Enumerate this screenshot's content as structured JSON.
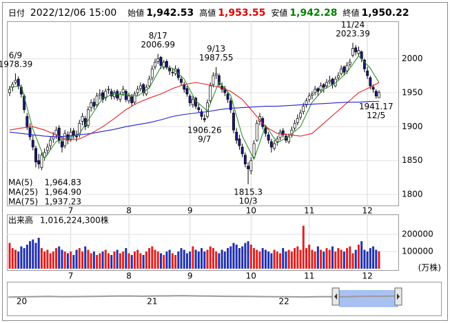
{
  "chart_data": {
    "type": "candlestick",
    "header": {
      "date_label": "日付",
      "date": "2022/12/06 15:00",
      "items": [
        {
          "name": "始値",
          "value": "1,942.53",
          "color": "#000000"
        },
        {
          "name": "高値",
          "value": "1,953.55",
          "color": "#e00000"
        },
        {
          "name": "安値",
          "value": "1,942.28",
          "color": "#008000"
        },
        {
          "name": "終値",
          "value": "1,950.22",
          "color": "#000000"
        }
      ]
    },
    "up_color": "#ffffff",
    "down_color": "#1a1a80",
    "outline_color": "#000000",
    "ylim": [
      1784,
      2055
    ],
    "yticks": [
      1800,
      1850,
      1900,
      1950,
      2000
    ],
    "grid": true,
    "xticks": [
      {
        "value": 21,
        "label": "7"
      },
      {
        "value": 41,
        "label": "8"
      },
      {
        "value": 62,
        "label": "9"
      },
      {
        "value": 83,
        "label": "10"
      },
      {
        "value": 103,
        "label": "11"
      },
      {
        "value": 123,
        "label": "12"
      }
    ],
    "candles": [
      [
        1950,
        1960,
        1945,
        1955
      ],
      [
        1958,
        1966,
        1952,
        1962
      ],
      [
        1965,
        1978.39,
        1962,
        1968
      ],
      [
        1970,
        1974,
        1955,
        1960
      ],
      [
        1958,
        1962,
        1943,
        1948
      ],
      [
        1945,
        1948,
        1920,
        1925
      ],
      [
        1915,
        1920,
        1895,
        1900
      ],
      [
        1898,
        1905,
        1880,
        1885
      ],
      [
        1880,
        1888,
        1865,
        1870
      ],
      [
        1868,
        1872,
        1840,
        1848
      ],
      [
        1850,
        1860,
        1838,
        1845
      ],
      [
        1840,
        1862,
        1836,
        1858
      ],
      [
        1855,
        1868,
        1850,
        1862
      ],
      [
        1865,
        1875,
        1858,
        1870
      ],
      [
        1872,
        1885,
        1866,
        1880
      ],
      [
        1882,
        1892,
        1876,
        1885
      ],
      [
        1888,
        1900,
        1882,
        1895
      ],
      [
        1898,
        1902,
        1875,
        1880
      ],
      [
        1878,
        1885,
        1862,
        1870
      ],
      [
        1872,
        1895,
        1868,
        1890
      ],
      [
        1888,
        1893,
        1874,
        1880
      ],
      [
        1882,
        1898,
        1878,
        1892
      ],
      [
        1894,
        1898,
        1882,
        1888
      ],
      [
        1886,
        1894,
        1878,
        1885
      ],
      [
        1888,
        1910,
        1884,
        1905
      ],
      [
        1908,
        1920,
        1902,
        1915
      ],
      [
        1912,
        1916,
        1895,
        1900
      ],
      [
        1902,
        1930,
        1898,
        1925
      ],
      [
        1928,
        1940,
        1922,
        1935
      ],
      [
        1936,
        1942,
        1925,
        1930
      ],
      [
        1932,
        1950,
        1928,
        1945
      ],
      [
        1946,
        1955,
        1940,
        1948
      ],
      [
        1950,
        1954,
        1935,
        1940
      ],
      [
        1942,
        1956,
        1938,
        1952
      ],
      [
        1954,
        1960,
        1948,
        1955
      ],
      [
        1952,
        1956,
        1940,
        1945
      ],
      [
        1944,
        1954,
        1940,
        1950
      ],
      [
        1952,
        1955,
        1938,
        1942
      ],
      [
        1940,
        1952,
        1936,
        1948
      ],
      [
        1950,
        1960,
        1945,
        1955
      ],
      [
        1952,
        1955,
        1936,
        1940
      ],
      [
        1938,
        1950,
        1934,
        1945
      ],
      [
        1944,
        1948,
        1930,
        1935
      ],
      [
        1936,
        1952,
        1932,
        1948
      ],
      [
        1950,
        1960,
        1946,
        1955
      ],
      [
        1956,
        1965,
        1952,
        1960
      ],
      [
        1962,
        1964,
        1945,
        1950
      ],
      [
        1948,
        1962,
        1945,
        1958
      ],
      [
        1960,
        1975,
        1956,
        1970
      ],
      [
        1972,
        1990,
        1968,
        1985
      ],
      [
        1988,
        2000,
        1984,
        1995
      ],
      [
        1996,
        2006.99,
        1992,
        2000
      ],
      [
        2002,
        2004,
        1985,
        1990
      ],
      [
        1988,
        1998,
        1984,
        1995
      ],
      [
        1996,
        1999,
        1984,
        1988
      ],
      [
        1986,
        1990,
        1976,
        1982
      ],
      [
        1980,
        1986,
        1974,
        1980
      ],
      [
        1978,
        1990,
        1975,
        1985
      ],
      [
        1984,
        1987,
        1968,
        1972
      ],
      [
        1970,
        1975,
        1960,
        1965
      ],
      [
        1962,
        1966,
        1950,
        1955
      ],
      [
        1956,
        1960,
        1944,
        1948
      ],
      [
        1945,
        1948,
        1930,
        1935
      ],
      [
        1932,
        1945,
        1928,
        1940
      ],
      [
        1942,
        1944,
        1926,
        1930
      ],
      [
        1928,
        1934,
        1920,
        1925
      ],
      [
        1922,
        1926,
        1910,
        1915
      ],
      [
        1912,
        1918,
        1906.26,
        1910
      ],
      [
        1915,
        1940,
        1912,
        1935
      ],
      [
        1938,
        1965,
        1935,
        1960
      ],
      [
        1962,
        1980,
        1958,
        1975
      ],
      [
        1976,
        1987.55,
        1970,
        1978
      ],
      [
        1975,
        1978,
        1958,
        1962
      ],
      [
        1960,
        1965,
        1950,
        1955
      ],
      [
        1956,
        1960,
        1945,
        1950
      ],
      [
        1948,
        1952,
        1935,
        1940
      ],
      [
        1938,
        1942,
        1920,
        1925
      ],
      [
        1920,
        1925,
        1890,
        1895
      ],
      [
        1892,
        1898,
        1875,
        1880
      ],
      [
        1882,
        1888,
        1866,
        1872
      ],
      [
        1870,
        1875,
        1855,
        1860
      ],
      [
        1858,
        1862,
        1840,
        1845
      ],
      [
        1842,
        1848,
        1815.3,
        1838
      ],
      [
        1835,
        1855,
        1830,
        1850
      ],
      [
        1855,
        1880,
        1852,
        1875
      ],
      [
        1880,
        1910,
        1878,
        1905
      ],
      [
        1908,
        1920,
        1902,
        1915
      ],
      [
        1912,
        1915,
        1896,
        1900
      ],
      [
        1898,
        1902,
        1885,
        1890
      ],
      [
        1888,
        1892,
        1875,
        1880
      ],
      [
        1878,
        1882,
        1862,
        1870
      ],
      [
        1868,
        1880,
        1865,
        1875
      ],
      [
        1878,
        1886,
        1872,
        1882
      ],
      [
        1884,
        1896,
        1880,
        1892
      ],
      [
        1894,
        1898,
        1884,
        1888
      ],
      [
        1886,
        1890,
        1876,
        1880
      ],
      [
        1878,
        1890,
        1875,
        1885
      ],
      [
        1888,
        1900,
        1884,
        1895
      ],
      [
        1898,
        1910,
        1894,
        1905
      ],
      [
        1906,
        1918,
        1902,
        1912
      ],
      [
        1914,
        1925,
        1910,
        1920
      ],
      [
        1922,
        1935,
        1918,
        1930
      ],
      [
        1932,
        1942,
        1928,
        1938
      ],
      [
        1940,
        1950,
        1936,
        1945
      ],
      [
        1946,
        1952,
        1940,
        1948
      ],
      [
        1950,
        1960,
        1946,
        1955
      ],
      [
        1956,
        1958,
        1945,
        1952
      ],
      [
        1954,
        1965,
        1950,
        1960
      ],
      [
        1962,
        1964,
        1950,
        1958
      ],
      [
        1960,
        1970,
        1956,
        1965
      ],
      [
        1966,
        1975,
        1962,
        1968
      ],
      [
        1970,
        1972,
        1956,
        1962
      ],
      [
        1960,
        1974,
        1958,
        1970
      ],
      [
        1972,
        1980,
        1968,
        1975
      ],
      [
        1978,
        1990,
        1975,
        1985
      ],
      [
        1988,
        1990,
        1975,
        1980
      ],
      [
        1982,
        1995,
        1978,
        1990
      ],
      [
        1992,
        2000,
        1988,
        1995
      ],
      [
        2005,
        2023.39,
        2002,
        2015
      ],
      [
        2016,
        2020,
        2005,
        2010
      ],
      [
        2008,
        2018,
        2004,
        2012
      ],
      [
        2010,
        2012,
        1995,
        2000
      ],
      [
        1998,
        2000,
        1980,
        1985
      ],
      [
        1982,
        1988,
        1970,
        1975
      ],
      [
        1972,
        1975,
        1955,
        1960
      ],
      [
        1958,
        1962,
        1950,
        1955
      ],
      [
        1952,
        1955,
        1941.17,
        1945
      ],
      [
        1942.53,
        1953.55,
        1942.28,
        1950.22
      ]
    ],
    "ma": [
      {
        "name": "MA(5)",
        "current": "1,964.83",
        "color": "#2e8b2e",
        "x": [
          0,
          4,
          8,
          12,
          16,
          20,
          24,
          28,
          32,
          36,
          40,
          44,
          48,
          52,
          56,
          60,
          64,
          68,
          72,
          76,
          80,
          84,
          88,
          92,
          96,
          100,
          104,
          108,
          112,
          116,
          120,
          124,
          127
        ],
        "values": [
          1958,
          1960,
          1896,
          1853,
          1878,
          1883,
          1890,
          1916,
          1942,
          1948,
          1947,
          1945,
          1957,
          1988,
          1986,
          1970,
          1938,
          1923,
          1966,
          1946,
          1886,
          1852,
          1902,
          1876,
          1886,
          1900,
          1936,
          1955,
          1964,
          1980,
          2004,
          1986,
          1964.83
        ]
      },
      {
        "name": "MA(25)",
        "current": "1,964.90",
        "color": "#e02020",
        "x": [
          0,
          4,
          8,
          12,
          16,
          20,
          24,
          28,
          32,
          36,
          40,
          44,
          48,
          52,
          56,
          60,
          64,
          68,
          72,
          76,
          80,
          84,
          88,
          92,
          96,
          100,
          104,
          108,
          112,
          116,
          120,
          124,
          127
        ],
        "values": [
          1895,
          1898,
          1900,
          1895,
          1888,
          1880,
          1882,
          1890,
          1900,
          1912,
          1925,
          1935,
          1942,
          1948,
          1956,
          1962,
          1965,
          1962,
          1958,
          1952,
          1940,
          1920,
          1900,
          1890,
          1888,
          1886,
          1890,
          1905,
          1920,
          1935,
          1950,
          1958,
          1964.9
        ]
      },
      {
        "name": "MA(75)",
        "current": "1,937.23",
        "color": "#2020d0",
        "x": [
          0,
          4,
          8,
          12,
          16,
          20,
          24,
          28,
          32,
          36,
          40,
          44,
          48,
          52,
          56,
          60,
          64,
          68,
          72,
          76,
          80,
          84,
          88,
          92,
          96,
          100,
          104,
          108,
          112,
          116,
          120,
          124,
          127
        ],
        "values": [
          1892,
          1890,
          1888,
          1886,
          1885,
          1886,
          1888,
          1890,
          1893,
          1896,
          1900,
          1903,
          1906,
          1910,
          1915,
          1918,
          1920,
          1922,
          1925,
          1927,
          1928,
          1929,
          1930,
          1930,
          1931,
          1932,
          1933,
          1934,
          1935,
          1936,
          1936,
          1937,
          1937.23
        ]
      }
    ],
    "annotations": [
      {
        "date": "6/9",
        "value": 1978.39,
        "position": "above"
      },
      {
        "date": "8/17",
        "value": 2006.99,
        "position": "above"
      },
      {
        "date": "9/13",
        "value": 1987.55,
        "position": "above"
      },
      {
        "date": "9/7",
        "value": 1906.26,
        "position": "below"
      },
      {
        "date": "10/3",
        "value": 1815.3,
        "position": "below"
      },
      {
        "date": "11/24",
        "value": 2023.39,
        "position": "above"
      },
      {
        "date": "12/5",
        "value": 1941.17,
        "position": "below"
      }
    ],
    "volume": {
      "label": "出来高",
      "current": "1,016,224,300株",
      "unit": "(万株)",
      "up_color": "#e02020",
      "down_color": "#2030b0",
      "ylim": [
        -8000,
        316000
      ],
      "yticks": [
        100000,
        200000
      ],
      "values": [
        150000,
        120000,
        110000,
        100000,
        130000,
        120000,
        140000,
        160000,
        170000,
        150000,
        180000,
        120000,
        100000,
        110000,
        90000,
        100000,
        120000,
        130000,
        110000,
        100000,
        90000,
        100000,
        80000,
        110000,
        120000,
        100000,
        130000,
        110000,
        90000,
        100000,
        80000,
        90000,
        100000,
        110000,
        90000,
        80000,
        100000,
        110000,
        90000,
        100000,
        120000,
        90000,
        80000,
        100000,
        110000,
        90000,
        80000,
        100000,
        120000,
        130000,
        110000,
        100000,
        90000,
        80000,
        100000,
        110000,
        90000,
        80000,
        100000,
        120000,
        110000,
        90000,
        100000,
        130000,
        110000,
        100000,
        120000,
        100000,
        110000,
        130000,
        120000,
        100000,
        90000,
        110000,
        100000,
        120000,
        130000,
        150000,
        140000,
        120000,
        130000,
        150000,
        160000,
        140000,
        120000,
        110000,
        100000,
        120000,
        110000,
        100000,
        90000,
        110000,
        100000,
        90000,
        120000,
        100000,
        110000,
        100000,
        120000,
        130000,
        110000,
        250000,
        120000,
        140000,
        110000,
        100000,
        130000,
        110000,
        100000,
        120000,
        110000,
        130000,
        100000,
        120000,
        110000,
        100000,
        120000,
        130000,
        90000,
        110000,
        140000,
        160000,
        110000,
        100000,
        120000,
        130000,
        110000,
        101622.43
      ]
    },
    "navigator": {
      "xlim": [
        0,
        29
      ],
      "ylim": [
        1000,
        3000
      ],
      "xticks": [
        {
          "value": 1,
          "label": "20"
        },
        {
          "value": 10.7,
          "label": "21"
        },
        {
          "value": 20.5,
          "label": "22"
        }
      ],
      "values": [
        1850,
        1880,
        1900,
        1920,
        1890,
        1900,
        1910,
        1930,
        1950,
        1960,
        1940,
        1960,
        1970,
        1980,
        1960,
        1950,
        1930,
        1920,
        1910,
        1900,
        1890,
        1880,
        1870,
        1890,
        1900,
        1880,
        1920,
        1940,
        1930,
        1960
      ],
      "selection": [
        24.6,
        29
      ]
    }
  }
}
